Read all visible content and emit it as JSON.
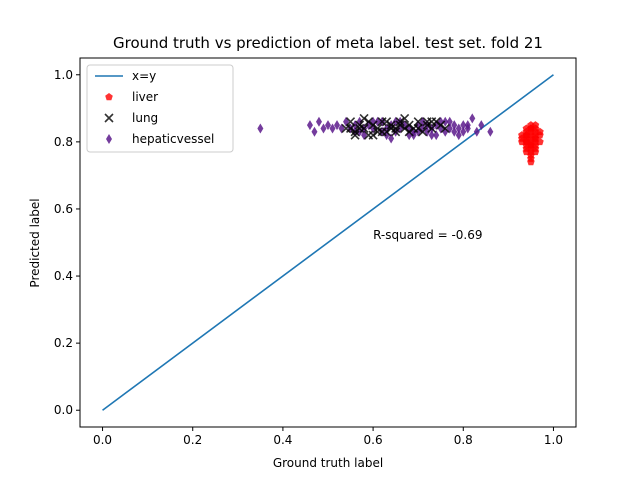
{
  "chart_data": {
    "type": "scatter",
    "title": "Ground truth vs prediction of meta label. test set. fold 21",
    "xlabel": "Ground truth label",
    "ylabel": "Predicted label",
    "xlim": [
      -0.05,
      1.05
    ],
    "ylim": [
      -0.05,
      1.05
    ],
    "xticks": [
      0.0,
      0.2,
      0.4,
      0.6,
      0.8,
      1.0
    ],
    "yticks": [
      0.0,
      0.2,
      0.4,
      0.6,
      0.8,
      1.0
    ],
    "xtick_labels": [
      "0.0",
      "0.2",
      "0.4",
      "0.6",
      "0.8",
      "1.0"
    ],
    "ytick_labels": [
      "0.0",
      "0.2",
      "0.4",
      "0.6",
      "0.8",
      "1.0"
    ],
    "grid": false,
    "legend_position": "upper-left",
    "annotation": {
      "text": "R-squared = -0.69",
      "x": 0.6,
      "y": 0.51
    },
    "line": {
      "name": "x=y",
      "color": "#1f77b4",
      "points": [
        [
          0.0,
          0.0
        ],
        [
          1.0,
          1.0
        ]
      ]
    },
    "series": [
      {
        "name": "liver",
        "marker": "pentagon",
        "color": "#ff0000",
        "points": [
          [
            0.93,
            0.8
          ],
          [
            0.94,
            0.82
          ],
          [
            0.95,
            0.79
          ],
          [
            0.96,
            0.81
          ],
          [
            0.95,
            0.84
          ],
          [
            0.94,
            0.78
          ],
          [
            0.96,
            0.77
          ],
          [
            0.95,
            0.74
          ],
          [
            0.94,
            0.83
          ],
          [
            0.96,
            0.85
          ],
          [
            0.95,
            0.8
          ],
          [
            0.97,
            0.82
          ],
          [
            0.93,
            0.82
          ],
          [
            0.95,
            0.76
          ],
          [
            0.94,
            0.8
          ],
          [
            0.96,
            0.79
          ],
          [
            0.95,
            0.82
          ],
          [
            0.94,
            0.81
          ],
          [
            0.96,
            0.83
          ],
          [
            0.95,
            0.78
          ],
          [
            0.96,
            0.8
          ],
          [
            0.94,
            0.79
          ],
          [
            0.95,
            0.81
          ],
          [
            0.97,
            0.8
          ],
          [
            0.93,
            0.81
          ],
          [
            0.95,
            0.85
          ],
          [
            0.96,
            0.84
          ],
          [
            0.94,
            0.77
          ],
          [
            0.95,
            0.83
          ],
          [
            0.96,
            0.82
          ],
          [
            0.95,
            0.77
          ],
          [
            0.94,
            0.84
          ],
          [
            0.96,
            0.78
          ],
          [
            0.95,
            0.79
          ],
          [
            0.97,
            0.83
          ],
          [
            0.94,
            0.82
          ],
          [
            0.95,
            0.84
          ],
          [
            0.96,
            0.81
          ],
          [
            0.95,
            0.75
          ],
          [
            0.94,
            0.8
          ]
        ]
      },
      {
        "name": "lung",
        "marker": "x",
        "color": "#000000",
        "points": [
          [
            0.54,
            0.84
          ],
          [
            0.55,
            0.86
          ],
          [
            0.56,
            0.83
          ],
          [
            0.57,
            0.85
          ],
          [
            0.58,
            0.84
          ],
          [
            0.59,
            0.82
          ],
          [
            0.6,
            0.85
          ],
          [
            0.61,
            0.84
          ],
          [
            0.62,
            0.86
          ],
          [
            0.63,
            0.83
          ],
          [
            0.64,
            0.85
          ],
          [
            0.65,
            0.84
          ],
          [
            0.66,
            0.86
          ],
          [
            0.67,
            0.87
          ],
          [
            0.68,
            0.85
          ],
          [
            0.69,
            0.84
          ],
          [
            0.7,
            0.86
          ],
          [
            0.71,
            0.83
          ],
          [
            0.72,
            0.85
          ],
          [
            0.73,
            0.84
          ],
          [
            0.74,
            0.86
          ],
          [
            0.75,
            0.85
          ],
          [
            0.76,
            0.84
          ],
          [
            0.56,
            0.82
          ],
          [
            0.58,
            0.87
          ],
          [
            0.6,
            0.82
          ],
          [
            0.62,
            0.83
          ],
          [
            0.64,
            0.84
          ],
          [
            0.66,
            0.85
          ],
          [
            0.68,
            0.83
          ],
          [
            0.57,
            0.84
          ],
          [
            0.59,
            0.86
          ],
          [
            0.61,
            0.83
          ],
          [
            0.63,
            0.86
          ],
          [
            0.65,
            0.83
          ],
          [
            0.7,
            0.84
          ],
          [
            0.72,
            0.86
          ],
          [
            0.55,
            0.84
          ],
          [
            0.67,
            0.84
          ],
          [
            0.73,
            0.86
          ]
        ]
      },
      {
        "name": "hepaticvessel",
        "marker": "thin_diamond",
        "color": "#5c1a8c",
        "points": [
          [
            0.35,
            0.84
          ],
          [
            0.46,
            0.85
          ],
          [
            0.47,
            0.83
          ],
          [
            0.48,
            0.86
          ],
          [
            0.49,
            0.84
          ],
          [
            0.5,
            0.85
          ],
          [
            0.51,
            0.84
          ],
          [
            0.52,
            0.85
          ],
          [
            0.54,
            0.86
          ],
          [
            0.55,
            0.84
          ],
          [
            0.56,
            0.85
          ],
          [
            0.57,
            0.83
          ],
          [
            0.58,
            0.84
          ],
          [
            0.59,
            0.85
          ],
          [
            0.6,
            0.84
          ],
          [
            0.61,
            0.86
          ],
          [
            0.62,
            0.83
          ],
          [
            0.63,
            0.84
          ],
          [
            0.64,
            0.85
          ],
          [
            0.65,
            0.83
          ],
          [
            0.66,
            0.84
          ],
          [
            0.67,
            0.85
          ],
          [
            0.68,
            0.84
          ],
          [
            0.69,
            0.83
          ],
          [
            0.7,
            0.85
          ],
          [
            0.71,
            0.84
          ],
          [
            0.72,
            0.83
          ],
          [
            0.73,
            0.84
          ],
          [
            0.74,
            0.85
          ],
          [
            0.75,
            0.84
          ],
          [
            0.76,
            0.83
          ],
          [
            0.77,
            0.84
          ],
          [
            0.78,
            0.85
          ],
          [
            0.79,
            0.84
          ],
          [
            0.8,
            0.83
          ],
          [
            0.81,
            0.84
          ],
          [
            0.82,
            0.87
          ],
          [
            0.84,
            0.85
          ],
          [
            0.86,
            0.83
          ],
          [
            0.64,
            0.81
          ],
          [
            0.69,
            0.82
          ],
          [
            0.74,
            0.82
          ],
          [
            0.58,
            0.82
          ],
          [
            0.62,
            0.86
          ],
          [
            0.66,
            0.86
          ],
          [
            0.71,
            0.86
          ],
          [
            0.76,
            0.86
          ],
          [
            0.79,
            0.82
          ],
          [
            0.83,
            0.83
          ],
          [
            0.53,
            0.84
          ],
          [
            0.56,
            0.83
          ],
          [
            0.6,
            0.86
          ],
          [
            0.68,
            0.82
          ],
          [
            0.72,
            0.85
          ],
          [
            0.78,
            0.83
          ],
          [
            0.81,
            0.85
          ],
          [
            0.65,
            0.86
          ],
          [
            0.7,
            0.83
          ],
          [
            0.75,
            0.86
          ],
          [
            0.57,
            0.86
          ],
          [
            0.63,
            0.82
          ],
          [
            0.73,
            0.82
          ],
          [
            0.77,
            0.86
          ],
          [
            0.8,
            0.85
          ]
        ]
      }
    ]
  }
}
